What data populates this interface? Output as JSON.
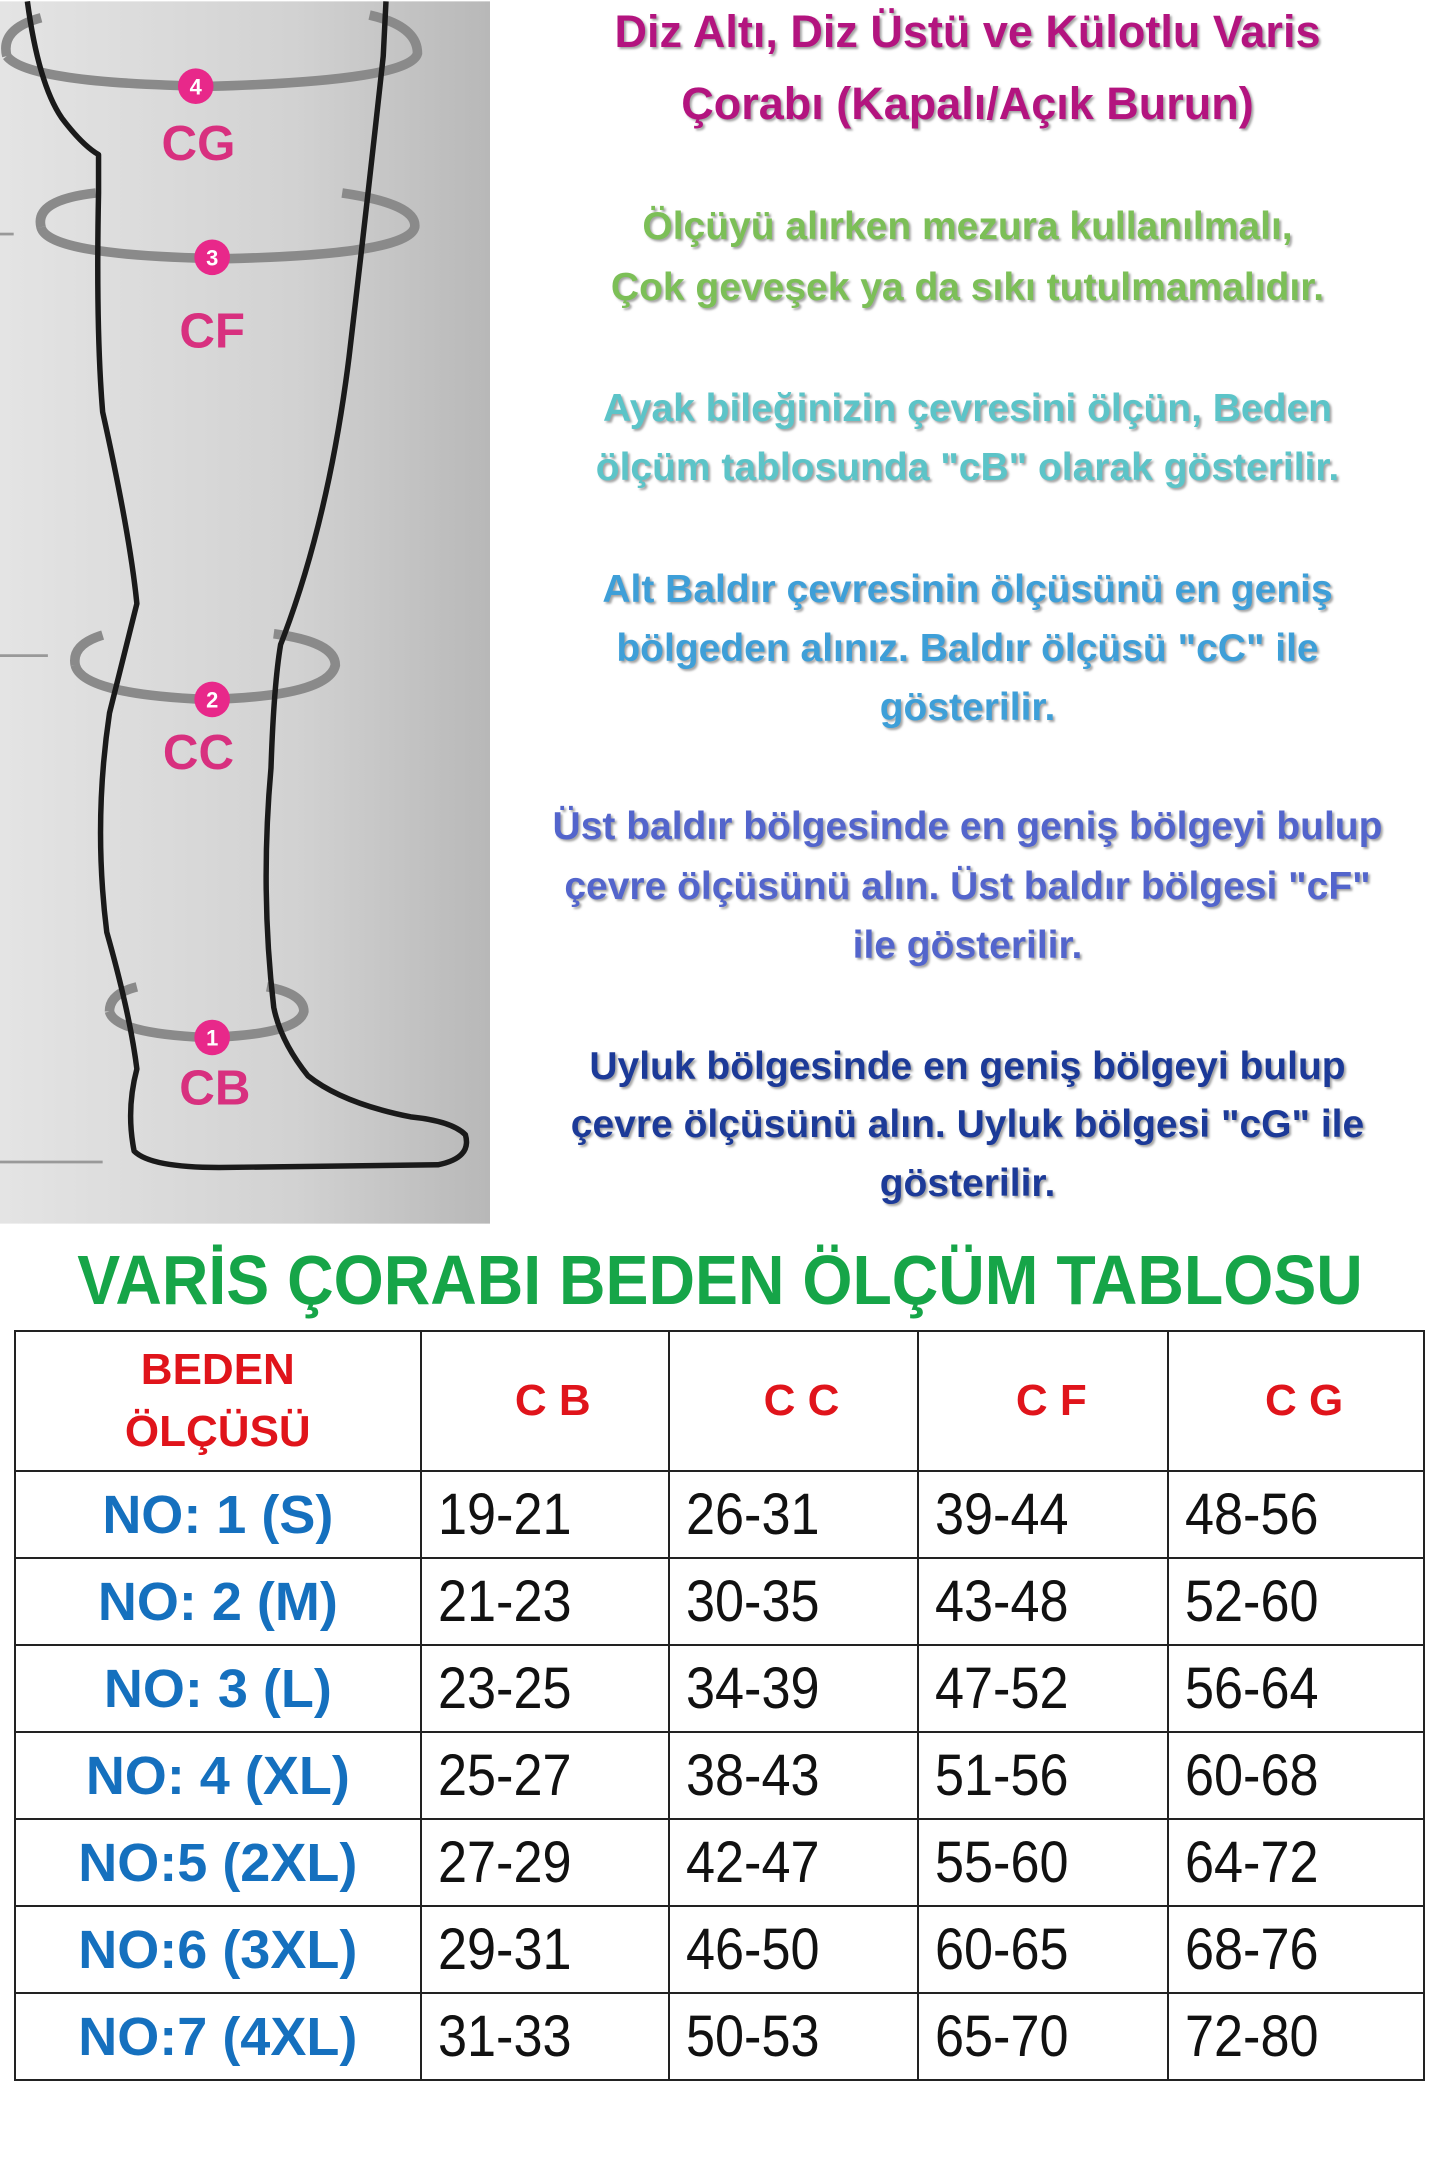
{
  "diagram": {
    "markers": [
      {
        "number": "4",
        "label": "CG"
      },
      {
        "number": "3",
        "label": "CF"
      },
      {
        "number": "2",
        "label": "CC"
      },
      {
        "number": "1",
        "label": "CB"
      }
    ],
    "colors": {
      "marker": "#e8288a",
      "label": "#d8307f",
      "band": "#8a8a8a",
      "outline": "#1a1a1a"
    }
  },
  "info": {
    "title_lines": [
      "Diz Altı, Diz Üstü ve Külotlu Varis",
      "Çorabı (Kapalı/Açık Burun)"
    ],
    "paragraphs": [
      {
        "color": "#7cbf57",
        "lines": [
          "Ölçüyü alırken mezura kullanılmalı,",
          "Çok geveşek ya da sıkı tutulmamalıdır."
        ]
      },
      {
        "color": "#5cc4c8",
        "lines": [
          "Ayak bileğinizin çevresini ölçün, Beden",
          "ölçüm tablosunda \"cB\" olarak gösterilir."
        ]
      },
      {
        "color": "#3e9fd8",
        "lines": [
          "Alt Baldır çevresinin ölçüsünü en geniş",
          "bölgeden alınız. Baldır ölçüsü \"cC\" ile",
          "gösterilir."
        ]
      },
      {
        "color": "#5365cc",
        "lines": [
          "Üst baldır bölgesinde en geniş bölgeyi bulup",
          "çevre ölçüsünü alın. Üst baldır bölgesi \"cF\"",
          "ile gösterilir."
        ]
      },
      {
        "color": "#1c3a98",
        "lines": [
          "Uyluk bölgesinde en geniş bölgeyi bulup",
          "çevre ölçüsünü alın. Uyluk bölgesi \"cG\" ile",
          "gösterilir."
        ]
      }
    ]
  },
  "size_table": {
    "title": "VARİS ÇORABI BEDEN ÖLÇÜM TABLOSU",
    "header": {
      "size_line1": "BEDEN",
      "size_line2": "ÖLÇÜSÜ",
      "columns": [
        "C B",
        "C C",
        "C F",
        "C G"
      ]
    },
    "rows": [
      {
        "size": "NO: 1 (S)",
        "values": [
          "19-21",
          "26-31",
          "39-44",
          "48-56"
        ]
      },
      {
        "size": "NO: 2 (M)",
        "values": [
          "21-23",
          "30-35",
          "43-48",
          "52-60"
        ]
      },
      {
        "size": "NO: 3 (L)",
        "values": [
          "23-25",
          "34-39",
          "47-52",
          "56-64"
        ]
      },
      {
        "size": "NO: 4 (XL)",
        "values": [
          "25-27",
          "38-43",
          "51-56",
          "60-68"
        ]
      },
      {
        "size": "NO:5 (2XL)",
        "values": [
          "27-29",
          "42-47",
          "55-60",
          "64-72"
        ]
      },
      {
        "size": "NO:6 (3XL)",
        "values": [
          "29-31",
          "46-50",
          "60-65",
          "68-76"
        ]
      },
      {
        "size": "NO:7 (4XL)",
        "values": [
          "31-33",
          "50-53",
          "65-70",
          "72-80"
        ]
      }
    ]
  }
}
